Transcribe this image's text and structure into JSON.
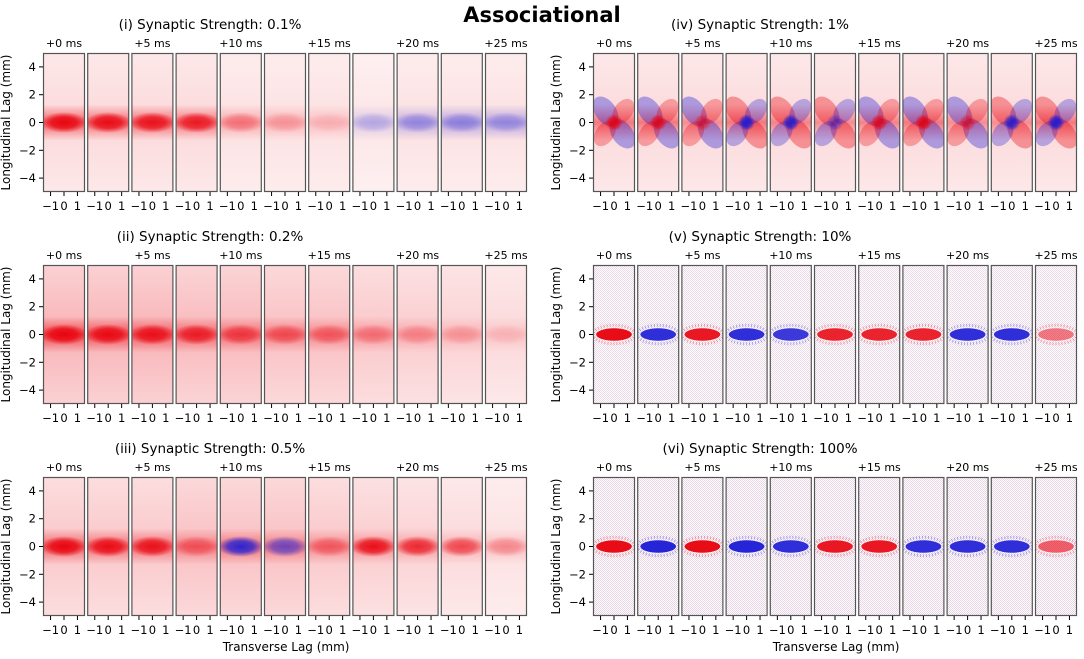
{
  "figure_title": "Associational",
  "colors": {
    "positive": "#e8000b",
    "negative": "#1a1ad6",
    "neutral": "#ffffff",
    "frame": "#555555"
  },
  "chart_data": [
    {
      "type": "heatmap",
      "panel": "(i)",
      "title": "Synaptic Strength: 0.1%",
      "time_labels": [
        "+0 ms",
        "+5 ms",
        "+10 ms",
        "+15 ms",
        "+20 ms",
        "+25 ms"
      ],
      "xlabel": "",
      "ylabel": "Longitudinal Lag (mm)",
      "xticks": [
        "−1",
        "0",
        "1"
      ],
      "yticks": [
        "4",
        "2",
        "0",
        "−2",
        "−4"
      ],
      "xlim": [
        -1.5,
        1.5
      ],
      "ylim": [
        -5,
        5
      ],
      "pattern": "smooth",
      "subplots": [
        {
          "center": 0.95,
          "band": 0.55,
          "background": 0.15
        },
        {
          "center": 0.9,
          "band": 0.5,
          "background": 0.15
        },
        {
          "center": 0.85,
          "band": 0.5,
          "background": 0.15
        },
        {
          "center": 0.8,
          "band": 0.45,
          "background": 0.15
        },
        {
          "center": 0.35,
          "band": 0.25,
          "background": 0.12
        },
        {
          "center": 0.2,
          "band": 0.2,
          "background": 0.12
        },
        {
          "center": 0.1,
          "band": 0.15,
          "background": 0.12
        },
        {
          "center": -0.2,
          "band": -0.15,
          "background": 0.1
        },
        {
          "center": -0.3,
          "band": -0.25,
          "background": 0.12
        },
        {
          "center": -0.3,
          "band": -0.3,
          "background": 0.12
        },
        {
          "center": -0.25,
          "band": -0.3,
          "background": 0.12
        }
      ]
    },
    {
      "type": "heatmap",
      "panel": "(ii)",
      "title": "Synaptic Strength: 0.2%",
      "time_labels": [
        "+0 ms",
        "+5 ms",
        "+10 ms",
        "+15 ms",
        "+20 ms",
        "+25 ms"
      ],
      "xlabel": "",
      "ylabel": "Longitudinal Lag (mm)",
      "xticks": [
        "−1",
        "0",
        "1"
      ],
      "yticks": [
        "4",
        "2",
        "0",
        "−2",
        "−4"
      ],
      "xlim": [
        -1.5,
        1.5
      ],
      "ylim": [
        -5,
        5
      ],
      "pattern": "smooth",
      "subplots": [
        {
          "center": 0.95,
          "band": 0.6,
          "background": 0.3
        },
        {
          "center": 0.9,
          "band": 0.55,
          "background": 0.3
        },
        {
          "center": 0.85,
          "band": 0.5,
          "background": 0.3
        },
        {
          "center": 0.75,
          "band": 0.45,
          "background": 0.28
        },
        {
          "center": 0.55,
          "band": 0.4,
          "background": 0.28
        },
        {
          "center": 0.45,
          "band": 0.35,
          "background": 0.25
        },
        {
          "center": 0.4,
          "band": 0.3,
          "background": 0.25
        },
        {
          "center": 0.3,
          "band": 0.25,
          "background": 0.22
        },
        {
          "center": 0.25,
          "band": 0.2,
          "background": 0.2
        },
        {
          "center": 0.2,
          "band": 0.15,
          "background": 0.18
        },
        {
          "center": 0.1,
          "band": 0.1,
          "background": 0.15
        }
      ]
    },
    {
      "type": "heatmap",
      "panel": "(iii)",
      "title": "Synaptic Strength: 0.5%",
      "time_labels": [
        "+0 ms",
        "+5 ms",
        "+10 ms",
        "+15 ms",
        "+20 ms",
        "+25 ms"
      ],
      "xlabel": "Transverse Lag (mm)",
      "ylabel": "Longitudinal Lag (mm)",
      "xticks": [
        "−1",
        "0",
        "1"
      ],
      "yticks": [
        "4",
        "2",
        "0",
        "−2",
        "−4"
      ],
      "xlim": [
        -1.5,
        1.5
      ],
      "ylim": [
        -5,
        5
      ],
      "pattern": "smooth",
      "subplots": [
        {
          "center": 0.95,
          "band": 0.5,
          "background": 0.22
        },
        {
          "center": 0.9,
          "band": 0.45,
          "background": 0.22
        },
        {
          "center": 0.85,
          "band": 0.45,
          "background": 0.22
        },
        {
          "center": 0.4,
          "band": 0.35,
          "background": 0.25
        },
        {
          "center": -0.9,
          "band": 0.4,
          "background": 0.25
        },
        {
          "center": -0.6,
          "band": 0.35,
          "background": 0.25
        },
        {
          "center": 0.4,
          "band": 0.3,
          "background": 0.22
        },
        {
          "center": 0.9,
          "band": 0.3,
          "background": 0.2
        },
        {
          "center": 0.75,
          "band": 0.25,
          "background": 0.18
        },
        {
          "center": 0.6,
          "band": 0.2,
          "background": 0.15
        },
        {
          "center": 0.3,
          "band": 0.15,
          "background": 0.12
        }
      ]
    },
    {
      "type": "heatmap",
      "panel": "(iv)",
      "title": "Synaptic Strength: 1%",
      "time_labels": [
        "+0 ms",
        "+5 ms",
        "+10 ms",
        "+15 ms",
        "+20 ms",
        "+25 ms"
      ],
      "xlabel": "",
      "ylabel": "Longitudinal Lag (mm)",
      "xticks": [
        "−1",
        "0",
        "1"
      ],
      "yticks": [
        "4",
        "2",
        "0",
        "−2",
        "−4"
      ],
      "xlim": [
        -1.5,
        1.5
      ],
      "ylim": [
        -5,
        5
      ],
      "pattern": "dipole",
      "subplots": [
        {
          "center": 0.9,
          "band": 0.45,
          "background": 0.15
        },
        {
          "center": 0.85,
          "band": 0.45,
          "background": 0.15
        },
        {
          "center": 0.6,
          "band": 0.35,
          "background": 0.15
        },
        {
          "center": -0.95,
          "band": 0.45,
          "background": 0.15
        },
        {
          "center": -0.9,
          "band": 0.4,
          "background": 0.15
        },
        {
          "center": -0.5,
          "band": 0.35,
          "background": 0.15
        },
        {
          "center": 0.8,
          "band": 0.4,
          "background": 0.15
        },
        {
          "center": 0.9,
          "band": 0.45,
          "background": 0.15
        },
        {
          "center": 0.6,
          "band": 0.35,
          "background": 0.15
        },
        {
          "center": -0.9,
          "band": 0.35,
          "background": 0.15
        },
        {
          "center": -0.95,
          "band": 0.45,
          "background": 0.15
        }
      ]
    },
    {
      "type": "heatmap",
      "panel": "(v)",
      "title": "Synaptic Strength: 10%",
      "time_labels": [
        "+0 ms",
        "+5 ms",
        "+10 ms",
        "+15 ms",
        "+20 ms",
        "+25 ms"
      ],
      "xlabel": "",
      "ylabel": "Longitudinal Lag (mm)",
      "xticks": [
        "−1",
        "0",
        "1"
      ],
      "yticks": [
        "4",
        "2",
        "0",
        "−2",
        "−4"
      ],
      "xlim": [
        -1.5,
        1.5
      ],
      "ylim": [
        -5,
        5
      ],
      "pattern": "noisy",
      "subplots": [
        {
          "center": 0.95,
          "band": 0.0,
          "background": 0.35
        },
        {
          "center": -0.9,
          "band": 0.0,
          "background": 0.35
        },
        {
          "center": 0.9,
          "band": 0.0,
          "background": 0.35
        },
        {
          "center": -0.9,
          "band": 0.0,
          "background": 0.35
        },
        {
          "center": -0.85,
          "band": 0.0,
          "background": 0.35
        },
        {
          "center": 0.85,
          "band": 0.0,
          "background": 0.35
        },
        {
          "center": 0.85,
          "band": 0.0,
          "background": 0.35
        },
        {
          "center": 0.85,
          "band": 0.0,
          "background": 0.35
        },
        {
          "center": -0.9,
          "band": 0.0,
          "background": 0.35
        },
        {
          "center": -0.9,
          "band": 0.0,
          "background": 0.35
        },
        {
          "center": 0.5,
          "band": 0.0,
          "background": 0.35
        }
      ]
    },
    {
      "type": "heatmap",
      "panel": "(vi)",
      "title": "Synaptic Strength: 100%",
      "time_labels": [
        "+0 ms",
        "+5 ms",
        "+10 ms",
        "+15 ms",
        "+20 ms",
        "+25 ms"
      ],
      "xlabel": "Transverse Lag (mm)",
      "ylabel": "Longitudinal Lag (mm)",
      "xticks": [
        "−1",
        "0",
        "1"
      ],
      "yticks": [
        "4",
        "2",
        "0",
        "−2",
        "−4"
      ],
      "xlim": [
        -1.5,
        1.5
      ],
      "ylim": [
        -5,
        5
      ],
      "pattern": "noisy",
      "subplots": [
        {
          "center": 0.95,
          "band": 0.0,
          "background": 0.4
        },
        {
          "center": -0.95,
          "band": 0.0,
          "background": 0.4
        },
        {
          "center": 0.95,
          "band": 0.0,
          "background": 0.4
        },
        {
          "center": -0.95,
          "band": 0.0,
          "background": 0.4
        },
        {
          "center": -0.9,
          "band": 0.0,
          "background": 0.4
        },
        {
          "center": 0.9,
          "band": 0.0,
          "background": 0.4
        },
        {
          "center": 0.9,
          "band": 0.0,
          "background": 0.4
        },
        {
          "center": -0.9,
          "band": 0.0,
          "background": 0.4
        },
        {
          "center": -0.9,
          "band": 0.0,
          "background": 0.4
        },
        {
          "center": -0.9,
          "band": 0.0,
          "background": 0.4
        },
        {
          "center": 0.6,
          "band": 0.0,
          "background": 0.4
        }
      ]
    }
  ]
}
